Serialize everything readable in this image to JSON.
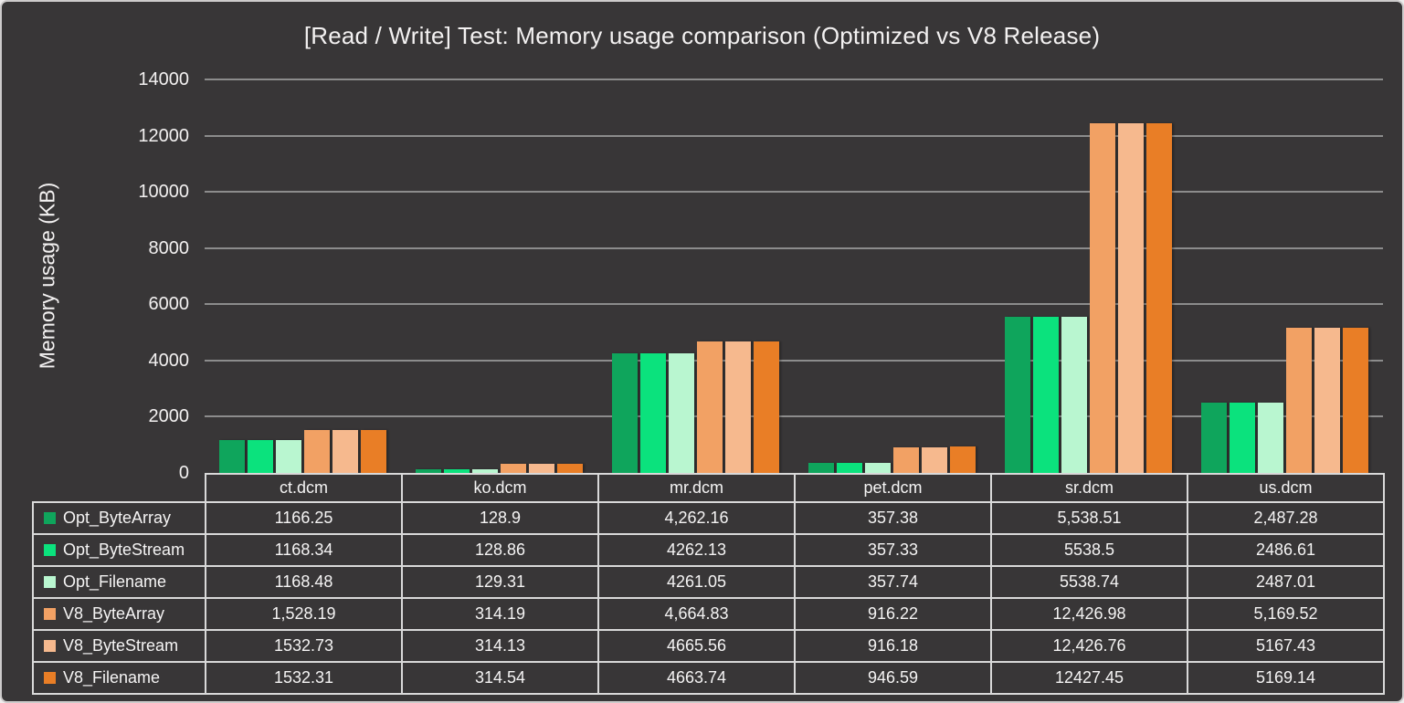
{
  "frame": {
    "background_color": "#383637",
    "border_color": "#CDCBCB",
    "text_color": "#F3F1F1",
    "grid_color": "#8C8C8C",
    "table_border_color": "#D9D9D9"
  },
  "chart_data": {
    "type": "bar",
    "title": "[Read / Write] Test: Memory usage comparison (Optimized vs V8 Release)",
    "xlabel": "",
    "ylabel": "Memory usage (KB)",
    "ylim": [
      0,
      14000
    ],
    "yticks": [
      0,
      2000,
      4000,
      6000,
      8000,
      10000,
      12000,
      14000
    ],
    "grid": true,
    "legend_position": "data-table-left",
    "categories": [
      "ct.dcm",
      "ko.dcm",
      "mr.dcm",
      "pet.dcm",
      "sr.dcm",
      "us.dcm"
    ],
    "series": [
      {
        "name": "Opt_ByteArray",
        "color": "#0FA55C",
        "values": [
          1166.25,
          128.9,
          4262.16,
          357.38,
          5538.51,
          2487.28
        ],
        "labels": [
          "1166.25",
          "128.9",
          "4,262.16",
          "357.38",
          "5,538.51",
          "2,487.28"
        ]
      },
      {
        "name": "Opt_ByteStream",
        "color": "#0BE27D",
        "values": [
          1168.34,
          128.86,
          4262.13,
          357.33,
          5538.5,
          2486.61
        ],
        "labels": [
          "1168.34",
          "128.86",
          "4262.13",
          "357.33",
          "5538.5",
          "2486.61"
        ]
      },
      {
        "name": "Opt_Filename",
        "color": "#B9F6D0",
        "values": [
          1168.48,
          129.31,
          4261.05,
          357.74,
          5538.74,
          2487.01
        ],
        "labels": [
          "1168.48",
          "129.31",
          "4261.05",
          "357.74",
          "5538.74",
          "2487.01"
        ]
      },
      {
        "name": "V8_ByteArray",
        "color": "#F2A164",
        "values": [
          1528.19,
          314.19,
          4664.83,
          916.22,
          12426.98,
          5169.52
        ],
        "labels": [
          "1,528.19",
          "314.19",
          "4,664.83",
          "916.22",
          "12,426.98",
          "5,169.52"
        ]
      },
      {
        "name": "V8_ByteStream",
        "color": "#F6B98E",
        "values": [
          1532.73,
          314.13,
          4665.56,
          916.18,
          12426.76,
          5167.43
        ],
        "labels": [
          "1532.73",
          "314.13",
          "4665.56",
          "916.18",
          "12,426.76",
          "5167.43"
        ]
      },
      {
        "name": "V8_Filename",
        "color": "#E97E26",
        "values": [
          1532.31,
          314.54,
          4663.74,
          946.59,
          12427.45,
          5169.14
        ],
        "labels": [
          "1532.31",
          "314.54",
          "4663.74",
          "946.59",
          "12427.45",
          "5169.14"
        ]
      }
    ]
  }
}
